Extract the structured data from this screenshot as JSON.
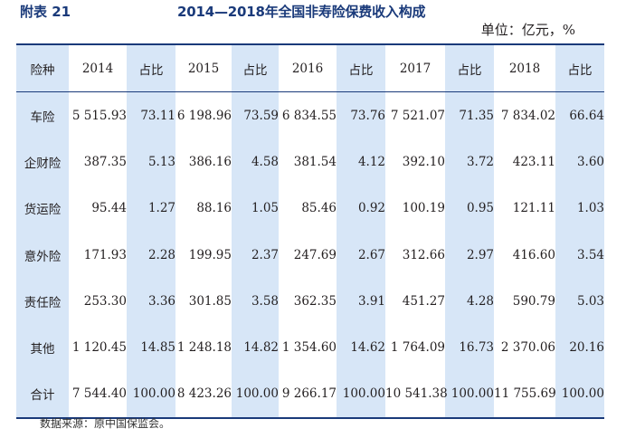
{
  "header": {
    "tag": "附表 21",
    "title": "2014—2018年全国非寿险保费收入构成",
    "unit": "单位：亿元，%"
  },
  "table": {
    "columns": [
      "险种",
      "2014",
      "占比",
      "2015",
      "占比",
      "2016",
      "占比",
      "2017",
      "占比",
      "2018",
      "占比"
    ],
    "rows": [
      [
        "车险",
        "5 515.93",
        "73.11",
        "6 198.96",
        "73.59",
        "6 834.55",
        "73.76",
        "7 521.07",
        "71.35",
        "7 834.02",
        "66.64"
      ],
      [
        "企财险",
        "387.35",
        "5.13",
        "386.16",
        "4.58",
        "381.54",
        "4.12",
        "392.10",
        "3.72",
        "423.11",
        "3.60"
      ],
      [
        "货运险",
        "95.44",
        "1.27",
        "88.16",
        "1.05",
        "85.46",
        "0.92",
        "100.19",
        "0.95",
        "121.11",
        "1.03"
      ],
      [
        "意外险",
        "171.93",
        "2.28",
        "199.95",
        "2.37",
        "247.69",
        "2.67",
        "312.66",
        "2.97",
        "416.60",
        "3.54"
      ],
      [
        "责任险",
        "253.30",
        "3.36",
        "301.85",
        "3.58",
        "362.35",
        "3.91",
        "451.27",
        "4.28",
        "590.79",
        "5.03"
      ],
      [
        "其他",
        "1 120.45",
        "14.85",
        "1 248.18",
        "14.82",
        "1 354.60",
        "14.62",
        "1 764.09",
        "16.73",
        "2 370.06",
        "20.16"
      ],
      [
        "合计",
        "7 544.40",
        "100.00",
        "8 423.26",
        "100.00",
        "9 266.17",
        "100.00",
        "10 541.38",
        "100.00",
        "11 755.69",
        "100.00"
      ]
    ]
  },
  "source": "数据来源：原中国保监会。",
  "colors": {
    "title": "#1a3a7a",
    "rule": "#1a3a7a",
    "shade": "#d7e6f7"
  }
}
